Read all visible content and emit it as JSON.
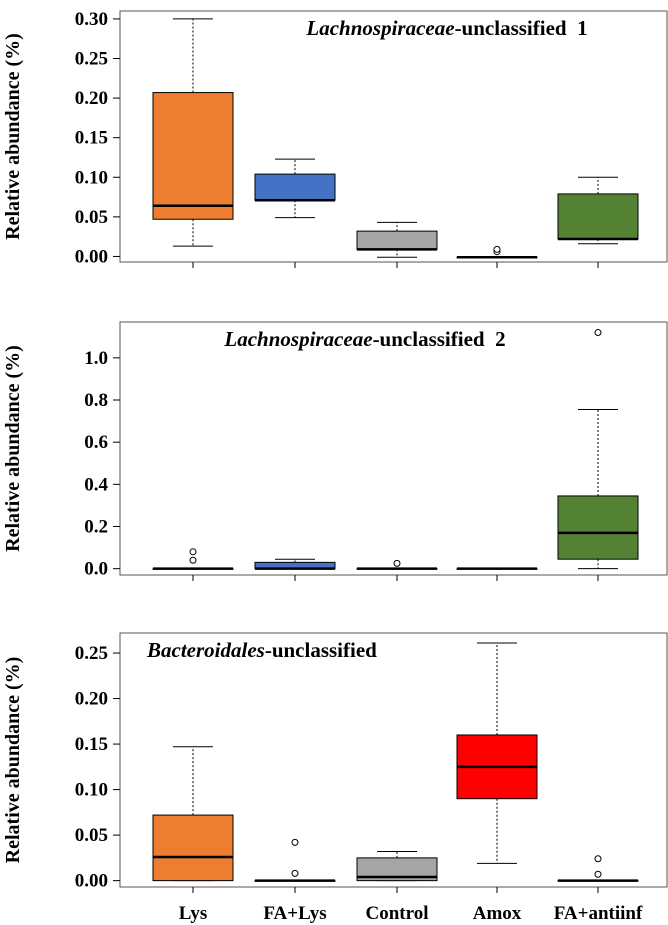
{
  "chart_data": [
    {
      "type": "boxplot",
      "title_italic": "Lachnospiraceae",
      "title_rest": "-unclassified  1",
      "title_position": "top-right",
      "ylabel": "Relative abundance (%)",
      "ylim": [
        -0.007,
        0.31
      ],
      "yticks": [
        0.0,
        0.05,
        0.1,
        0.15,
        0.2,
        0.25,
        0.3
      ],
      "ytick_labels": [
        "0.00",
        "0.05",
        "0.10",
        "0.15",
        "0.20",
        "0.25",
        "0.30"
      ],
      "categories": [
        "Lys",
        "FA+Lys",
        "Control",
        "Amox",
        "FA+antiinf"
      ],
      "boxes": [
        {
          "category": "Lys",
          "color": "#ED7D31",
          "whisker_low": 0.013,
          "q1": 0.047,
          "median": 0.064,
          "q3": 0.207,
          "whisker_high": 0.3,
          "outliers": []
        },
        {
          "category": "FA+Lys",
          "color": "#4472C4",
          "whisker_low": 0.049,
          "q1": 0.071,
          "median": 0.071,
          "q3": 0.104,
          "whisker_high": 0.123,
          "outliers": []
        },
        {
          "category": "Control",
          "color": "#A5A5A5",
          "whisker_low": -0.001,
          "q1": 0.009,
          "median": 0.009,
          "q3": 0.032,
          "whisker_high": 0.043,
          "outliers": []
        },
        {
          "category": "Amox",
          "color": "#A5A5A5",
          "whisker_low": -0.001,
          "q1": -0.001,
          "median": -0.001,
          "q3": -0.001,
          "whisker_high": -0.001,
          "outliers": [
            0.006,
            0.009
          ]
        },
        {
          "category": "FA+antiinf",
          "color": "#548235",
          "whisker_low": 0.016,
          "q1": 0.022,
          "median": 0.022,
          "q3": 0.079,
          "whisker_high": 0.1,
          "outliers": []
        }
      ]
    },
    {
      "type": "boxplot",
      "title_italic": "Lachnospiraceae",
      "title_rest": "-unclassified  2",
      "title_position": "top-center",
      "ylabel": "Relative abundance (%)",
      "ylim": [
        -0.03,
        1.17
      ],
      "yticks": [
        0.0,
        0.2,
        0.4,
        0.6,
        0.8,
        1.0
      ],
      "ytick_labels": [
        "0.0",
        "0.2",
        "0.4",
        "0.6",
        "0.8",
        "1.0"
      ],
      "categories": [
        "Lys",
        "FA+Lys",
        "Control",
        "Amox",
        "FA+antiinf"
      ],
      "boxes": [
        {
          "category": "Lys",
          "color": "#ED7D31",
          "whisker_low": 0.0,
          "q1": 0.0,
          "median": 0.0,
          "q3": 0.0,
          "whisker_high": 0.0,
          "outliers": [
            0.04,
            0.08
          ]
        },
        {
          "category": "FA+Lys",
          "color": "#4472C4",
          "whisker_low": 0.0,
          "q1": 0.0,
          "median": 0.0,
          "q3": 0.03,
          "whisker_high": 0.045,
          "outliers": []
        },
        {
          "category": "Control",
          "color": "#A5A5A5",
          "whisker_low": 0.0,
          "q1": 0.0,
          "median": 0.0,
          "q3": 0.0,
          "whisker_high": 0.0,
          "outliers": [
            0.025
          ]
        },
        {
          "category": "Amox",
          "color": "#A5A5A5",
          "whisker_low": 0.0,
          "q1": 0.0,
          "median": 0.0,
          "q3": 0.0,
          "whisker_high": 0.0,
          "outliers": []
        },
        {
          "category": "FA+antiinf",
          "color": "#548235",
          "whisker_low": 0.0,
          "q1": 0.045,
          "median": 0.17,
          "q3": 0.345,
          "whisker_high": 0.755,
          "outliers": [
            1.12
          ]
        }
      ]
    },
    {
      "type": "boxplot",
      "title_italic": "Bacteroidales",
      "title_rest": "-unclassified",
      "title_position": "top-left",
      "ylabel": "Relative abundance (%)",
      "ylim": [
        -0.007,
        0.272
      ],
      "yticks": [
        0.0,
        0.05,
        0.1,
        0.15,
        0.2,
        0.25
      ],
      "ytick_labels": [
        "0.00",
        "0.05",
        "0.10",
        "0.15",
        "0.20",
        "0.25"
      ],
      "categories": [
        "Lys",
        "FA+Lys",
        "Control",
        "Amox",
        "FA+antiinf"
      ],
      "boxes": [
        {
          "category": "Lys",
          "color": "#ED7D31",
          "whisker_low": 0.0,
          "q1": 0.0,
          "median": 0.026,
          "q3": 0.072,
          "whisker_high": 0.147,
          "outliers": []
        },
        {
          "category": "FA+Lys",
          "color": "#4472C4",
          "whisker_low": 0.0,
          "q1": 0.0,
          "median": 0.0,
          "q3": 0.0,
          "whisker_high": 0.0,
          "outliers": [
            0.008,
            0.042
          ]
        },
        {
          "category": "Control",
          "color": "#A5A5A5",
          "whisker_low": 0.0,
          "q1": 0.0,
          "median": 0.004,
          "q3": 0.025,
          "whisker_high": 0.032,
          "outliers": []
        },
        {
          "category": "Amox",
          "color": "#FF0000",
          "whisker_low": 0.019,
          "q1": 0.09,
          "median": 0.125,
          "q3": 0.16,
          "whisker_high": 0.261,
          "outliers": []
        },
        {
          "category": "FA+antiinf",
          "color": "#548235",
          "whisker_low": 0.0,
          "q1": 0.0,
          "median": 0.0,
          "q3": 0.0,
          "whisker_high": 0.0,
          "outliers": [
            0.007,
            0.024
          ]
        }
      ]
    }
  ],
  "x_labels": [
    "Lys",
    "FA+Lys",
    "Control",
    "Amox",
    "FA+antiinf"
  ]
}
